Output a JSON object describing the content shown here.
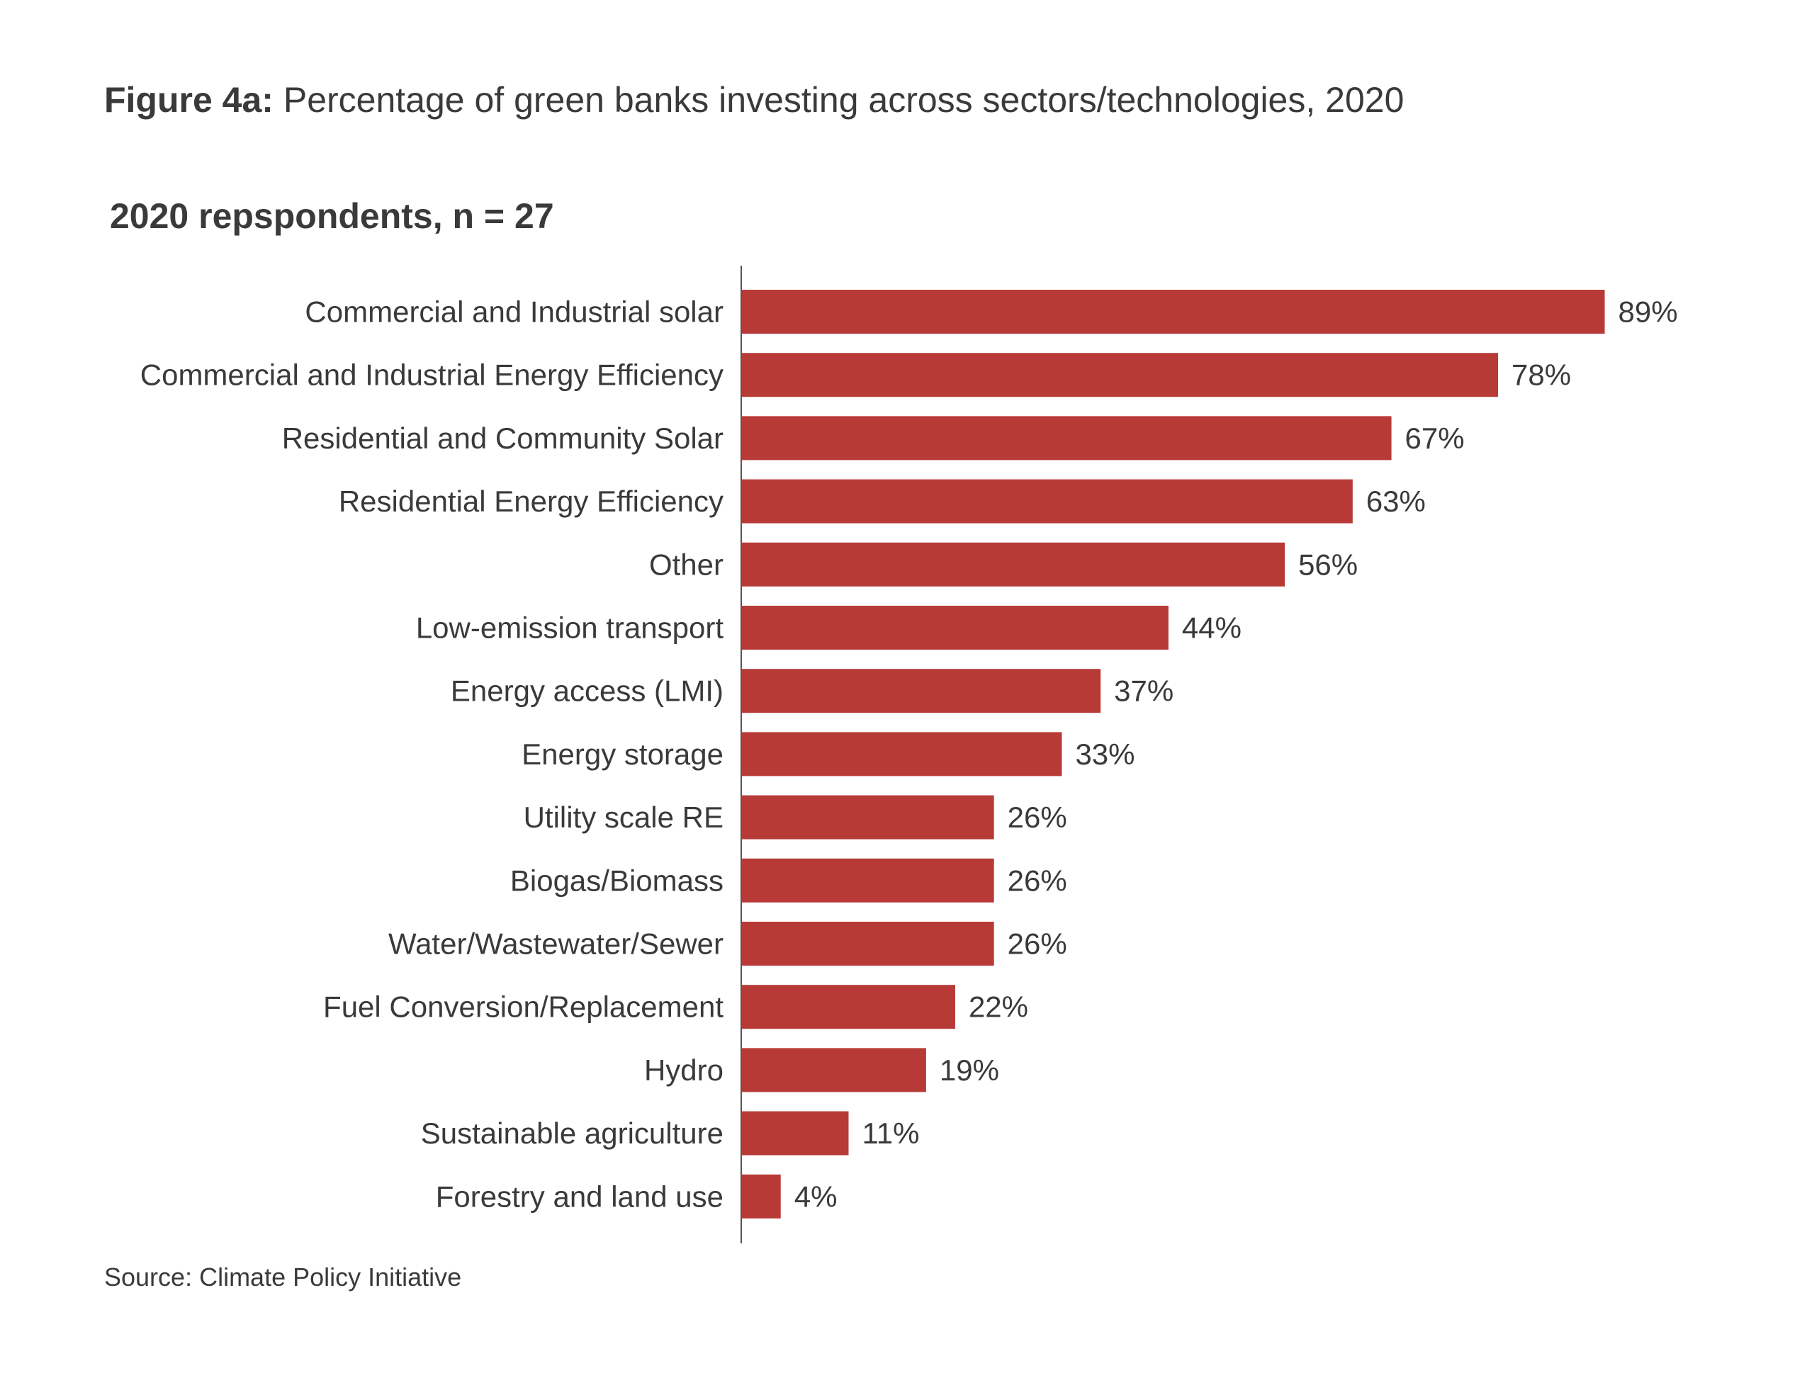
{
  "figure": {
    "label": "Figure 4a:",
    "title": "Percentage of green banks investing across sectors/technologies, 2020",
    "subtitle": "2020 repspondents, n = 27",
    "source": "Source: Climate Policy Initiative"
  },
  "chart_data": {
    "type": "bar",
    "orientation": "horizontal",
    "title": "2020 repspondents, n = 27",
    "xlabel": "",
    "ylabel": "",
    "xlim": [
      0,
      100
    ],
    "grid": false,
    "legend": "none",
    "bar_color": "#b73a37",
    "value_suffix": "%",
    "categories": [
      "Commercial and Industrial solar",
      "Commercial and Industrial Energy Efficiency",
      "Residential and Community Solar",
      "Residential Energy Efficiency",
      "Other",
      "Low-emission transport",
      "Energy access (LMI)",
      "Energy storage",
      "Utility scale RE",
      "Biogas/Biomass",
      "Water/Wastewater/Sewer",
      "Fuel Conversion/Replacement",
      "Hydro",
      "Sustainable agriculture",
      "Forestry and land use"
    ],
    "values": [
      89,
      78,
      67,
      63,
      56,
      44,
      37,
      33,
      26,
      26,
      26,
      22,
      19,
      11,
      4
    ],
    "value_labels": [
      "89%",
      "78%",
      "67%",
      "63%",
      "56%",
      "44%",
      "37%",
      "33%",
      "26%",
      "26%",
      "26%",
      "22%",
      "19%",
      "11%",
      "4%"
    ]
  }
}
